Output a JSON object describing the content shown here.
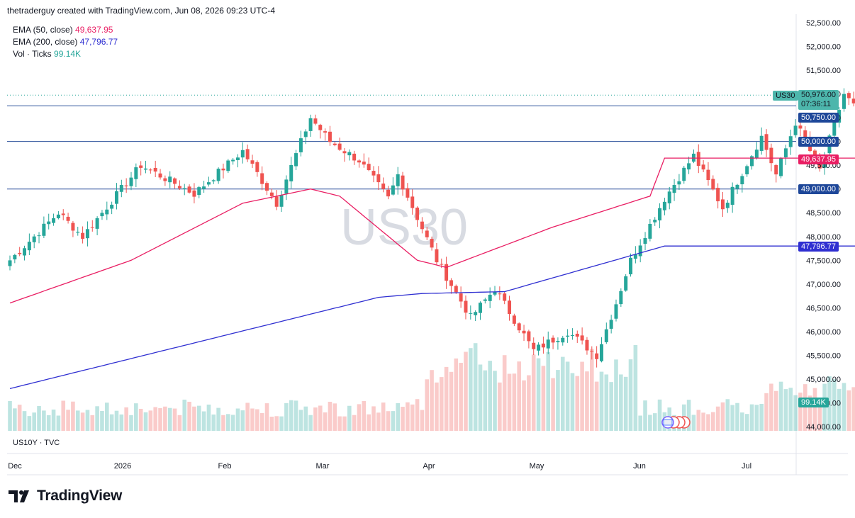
{
  "header": {
    "text": "thetraderguy created with TradingView.com, Jun 08, 2026 09:23 UTC-4"
  },
  "legend": {
    "ema50_label": "EMA (50, close)",
    "ema50_value": "49,637.95",
    "ema200_label": "EMA (200, close)",
    "ema200_value": "47,796.77",
    "vol_label": "Vol · Ticks",
    "vol_value": "99.14K"
  },
  "watermark": "US30",
  "symbol_tag": "US30",
  "sub_label": "US10Y · TVC",
  "colors": {
    "up": "#26a69a",
    "down": "#ef5350",
    "ema50": "#e91e63",
    "ema200": "#2f2fd1",
    "hline": "#2a4f9a"
  },
  "badges": {
    "last_price": "50,976.00",
    "countdown": "07:36:11",
    "level_50750": "50,750.00",
    "level_50000": "50,000.00",
    "ema50": "49,637.95",
    "level_49000": "49,000.00",
    "ema200": "47,796.77",
    "volume": "99.14K"
  },
  "brand": {
    "name": "TradingView"
  },
  "chart_data": {
    "type": "candlestick",
    "ylim": [
      44000,
      52500
    ],
    "y_ticks": [
      "52,500.00",
      "52,000.00",
      "51,500.00",
      "51,000.00",
      "50,500.00",
      "50,000.00",
      "49,500.00",
      "49,000.00",
      "48,500.00",
      "48,000.00",
      "47,500.00",
      "47,000.00",
      "46,500.00",
      "46,000.00",
      "45,500.00",
      "45,000.00",
      "44,500.00",
      "44,000.00"
    ],
    "x_ticks": [
      "Dec",
      "2026",
      "Feb",
      "Mar",
      "Apr",
      "May",
      "Jun",
      "Jul"
    ],
    "horizontal_levels": [
      50750,
      50000,
      49000
    ],
    "anchors": [
      [
        47500,
        0
      ],
      [
        48500,
        10
      ],
      [
        48000,
        15
      ],
      [
        49500,
        27
      ],
      [
        48900,
        38
      ],
      [
        49800,
        48
      ],
      [
        48700,
        55
      ],
      [
        50500,
        62
      ],
      [
        50000,
        66
      ],
      [
        49600,
        72
      ],
      [
        48800,
        78
      ],
      [
        49300,
        80
      ],
      [
        47500,
        88
      ],
      [
        46300,
        95
      ],
      [
        46900,
        100
      ],
      [
        45600,
        108
      ],
      [
        46000,
        115
      ],
      [
        45500,
        121
      ],
      [
        46600,
        125
      ],
      [
        47500,
        128
      ],
      [
        48800,
        135
      ],
      [
        49700,
        141
      ],
      [
        48600,
        147
      ],
      [
        50100,
        155
      ],
      [
        49300,
        158
      ],
      [
        50400,
        162
      ],
      [
        49400,
        167
      ],
      [
        51000,
        172
      ],
      [
        50500,
        176
      ],
      [
        51300,
        181
      ],
      [
        50950,
        187
      ]
    ],
    "ema50": [
      [
        46600,
        0
      ],
      [
        47500,
        25
      ],
      [
        48700,
        48
      ],
      [
        49000,
        62
      ],
      [
        48850,
        68
      ],
      [
        47500,
        84
      ],
      [
        47350,
        90
      ],
      [
        48200,
        112
      ],
      [
        48850,
        132
      ],
      [
        49650,
        135
      ]
    ],
    "ema200": [
      [
        44800,
        0
      ],
      [
        46720,
        76
      ],
      [
        46800,
        85
      ],
      [
        46840,
        102
      ],
      [
        47800,
        135
      ]
    ],
    "volume_k": {
      "last": 99.14
    }
  }
}
